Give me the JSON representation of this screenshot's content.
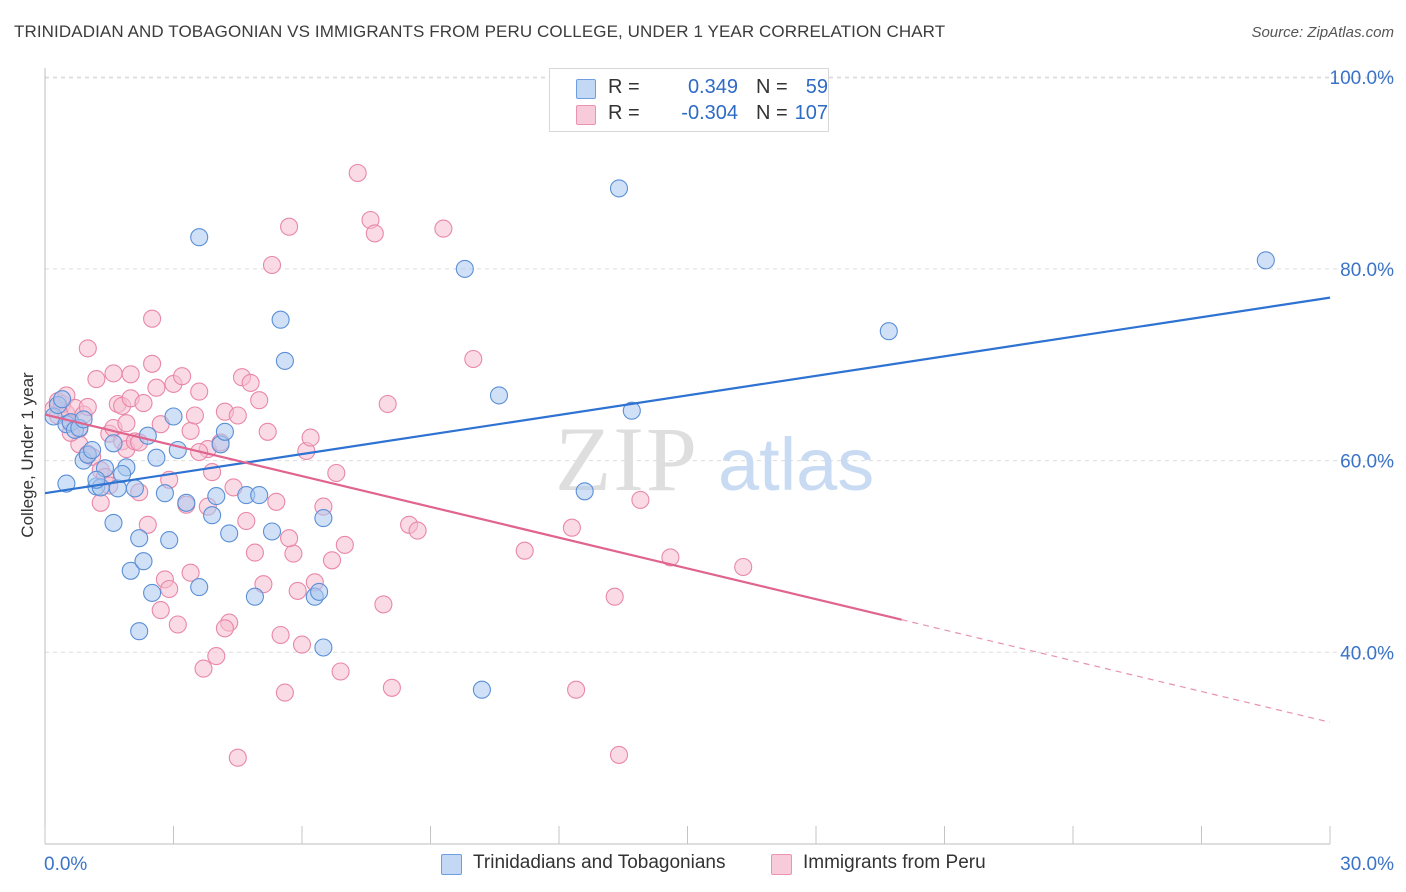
{
  "header": {
    "title": "TRINIDADIAN AND TOBAGONIAN VS IMMIGRANTS FROM PERU COLLEGE, UNDER 1 YEAR CORRELATION CHART",
    "source": "Source: ZipAtlas.com"
  },
  "watermark": {
    "zip": "ZIP",
    "atlas": "atlas"
  },
  "legend": {
    "r_label": "R =",
    "n_label": "N =",
    "rows": [
      {
        "r": "0.349",
        "n": "59"
      },
      {
        "r": "-0.304",
        "n": "107"
      }
    ]
  },
  "colors": {
    "blue_fill": "#a9c8f0",
    "blue_stroke": "#5b8fd6",
    "blue_line": "#2e72d2",
    "pink_fill": "#f6bdd0",
    "pink_stroke": "#e987a8",
    "pink_line": "#e0648e",
    "axis_label": "#3a73c8",
    "grid": "#dcdcdc"
  },
  "chart_data": {
    "type": "scatter",
    "title": "TRINIDADIAN AND TOBAGONIAN VS IMMIGRANTS FROM PERU COLLEGE, UNDER 1 YEAR CORRELATION CHART",
    "xlabel": "",
    "ylabel": "College, Under 1 year",
    "xlim": [
      0,
      30
    ],
    "ylim": [
      20,
      102
    ],
    "x_tick_labels": [
      {
        "value": 0,
        "label": "0.0%"
      },
      {
        "value": 30,
        "label": "30.0%"
      }
    ],
    "y_tick_labels": [
      {
        "value": 100,
        "label": "100.0%"
      },
      {
        "value": 80,
        "label": "80.0%"
      },
      {
        "value": 60,
        "label": "60.0%"
      },
      {
        "value": 40,
        "label": "40.0%"
      }
    ],
    "y_gridlines": [
      100,
      80,
      60,
      40
    ],
    "x_minor_ticks": [
      0,
      3,
      6,
      9,
      12,
      15,
      18,
      21,
      24,
      27,
      30
    ],
    "legend_position": "bottom",
    "series": [
      {
        "name": "Trinidadians and Tobagonians",
        "color": "blue",
        "trend": {
          "x": [
            0,
            30
          ],
          "y": [
            56.6,
            77.0
          ]
        },
        "points": [
          [
            0.2,
            64.6
          ],
          [
            0.3,
            65.8
          ],
          [
            0.4,
            66.4
          ],
          [
            0.5,
            63.8
          ],
          [
            0.6,
            64.0
          ],
          [
            0.7,
            63.2
          ],
          [
            0.5,
            57.6
          ],
          [
            0.8,
            63.4
          ],
          [
            0.9,
            60.0
          ],
          [
            1.0,
            60.6
          ],
          [
            1.1,
            61.1
          ],
          [
            1.2,
            57.3
          ],
          [
            1.3,
            57.2
          ],
          [
            1.4,
            59.2
          ],
          [
            1.6,
            61.8
          ],
          [
            1.7,
            57.1
          ],
          [
            1.9,
            59.3
          ],
          [
            2.0,
            48.5
          ],
          [
            2.1,
            57.1
          ],
          [
            2.2,
            51.9
          ],
          [
            2.4,
            62.6
          ],
          [
            2.5,
            46.2
          ],
          [
            2.6,
            60.3
          ],
          [
            2.8,
            56.6
          ],
          [
            2.9,
            51.7
          ],
          [
            3.0,
            64.6
          ],
          [
            3.1,
            61.1
          ],
          [
            3.3,
            55.6
          ],
          [
            3.6,
            83.3
          ],
          [
            3.6,
            46.8
          ],
          [
            3.9,
            54.3
          ],
          [
            4.0,
            56.3
          ],
          [
            4.1,
            61.7
          ],
          [
            4.2,
            63.0
          ],
          [
            4.3,
            52.4
          ],
          [
            4.7,
            56.4
          ],
          [
            4.9,
            45.8
          ],
          [
            5.0,
            56.4
          ],
          [
            5.3,
            52.6
          ],
          [
            5.5,
            74.7
          ],
          [
            5.6,
            70.4
          ],
          [
            6.3,
            45.8
          ],
          [
            6.4,
            46.3
          ],
          [
            6.5,
            54.0
          ],
          [
            6.5,
            40.5
          ],
          [
            2.3,
            49.5
          ],
          [
            1.6,
            53.5
          ],
          [
            1.2,
            58.0
          ],
          [
            2.2,
            42.2
          ],
          [
            9.8,
            80.0
          ],
          [
            10.2,
            36.1
          ],
          [
            10.6,
            66.8
          ],
          [
            12.6,
            56.8
          ],
          [
            13.4,
            88.4
          ],
          [
            13.7,
            65.2
          ],
          [
            19.7,
            73.5
          ],
          [
            28.5,
            80.9
          ],
          [
            1.8,
            58.6
          ],
          [
            0.9,
            64.3
          ]
        ]
      },
      {
        "name": "Immigrants from Peru",
        "color": "pink",
        "trend": {
          "x": [
            0,
            20
          ],
          "y": [
            64.8,
            43.4
          ]
        },
        "trend_dashed": {
          "x": [
            20,
            30
          ],
          "y": [
            43.4,
            32.7
          ]
        },
        "points": [
          [
            0.2,
            65.4
          ],
          [
            0.3,
            64.7
          ],
          [
            0.3,
            66.2
          ],
          [
            0.4,
            65.9
          ],
          [
            0.5,
            64.9
          ],
          [
            0.5,
            66.8
          ],
          [
            0.6,
            63.9
          ],
          [
            0.7,
            65.5
          ],
          [
            0.8,
            63.3
          ],
          [
            0.8,
            61.7
          ],
          [
            0.9,
            64.8
          ],
          [
            1.0,
            65.6
          ],
          [
            1.0,
            71.7
          ],
          [
            1.1,
            60.4
          ],
          [
            1.2,
            68.5
          ],
          [
            1.3,
            59.0
          ],
          [
            1.4,
            58.3
          ],
          [
            1.5,
            62.8
          ],
          [
            1.6,
            63.4
          ],
          [
            1.6,
            69.1
          ],
          [
            1.7,
            65.9
          ],
          [
            1.8,
            62.0
          ],
          [
            1.8,
            65.7
          ],
          [
            1.9,
            63.9
          ],
          [
            1.9,
            61.2
          ],
          [
            2.0,
            66.5
          ],
          [
            2.1,
            62.0
          ],
          [
            2.2,
            61.9
          ],
          [
            2.3,
            66.0
          ],
          [
            2.4,
            53.3
          ],
          [
            2.5,
            74.8
          ],
          [
            2.5,
            70.1
          ],
          [
            2.6,
            67.6
          ],
          [
            2.7,
            63.8
          ],
          [
            2.8,
            47.6
          ],
          [
            2.9,
            46.6
          ],
          [
            3.0,
            68.0
          ],
          [
            3.1,
            42.9
          ],
          [
            3.2,
            68.8
          ],
          [
            3.3,
            55.4
          ],
          [
            3.4,
            63.1
          ],
          [
            3.5,
            64.7
          ],
          [
            3.6,
            67.2
          ],
          [
            3.7,
            38.3
          ],
          [
            3.8,
            61.2
          ],
          [
            3.9,
            58.8
          ],
          [
            4.0,
            39.6
          ],
          [
            4.1,
            61.9
          ],
          [
            4.2,
            65.1
          ],
          [
            4.3,
            43.1
          ],
          [
            4.4,
            57.2
          ],
          [
            4.5,
            64.7
          ],
          [
            4.6,
            68.7
          ],
          [
            4.7,
            53.7
          ],
          [
            4.8,
            68.1
          ],
          [
            4.9,
            50.4
          ],
          [
            5.0,
            66.3
          ],
          [
            5.1,
            47.1
          ],
          [
            5.2,
            63.0
          ],
          [
            5.3,
            80.4
          ],
          [
            5.4,
            55.7
          ],
          [
            5.5,
            41.8
          ],
          [
            5.6,
            35.8
          ],
          [
            5.7,
            84.4
          ],
          [
            5.8,
            50.3
          ],
          [
            5.9,
            46.4
          ],
          [
            6.0,
            40.8
          ],
          [
            6.1,
            61.0
          ],
          [
            6.2,
            62.4
          ],
          [
            6.3,
            47.3
          ],
          [
            6.5,
            55.2
          ],
          [
            6.7,
            49.6
          ],
          [
            6.9,
            38.0
          ],
          [
            7.0,
            51.2
          ],
          [
            7.3,
            90.0
          ],
          [
            7.6,
            85.1
          ],
          [
            7.7,
            83.7
          ],
          [
            7.9,
            45.0
          ],
          [
            8.0,
            65.9
          ],
          [
            8.1,
            36.3
          ],
          [
            8.5,
            53.3
          ],
          [
            8.7,
            52.7
          ],
          [
            9.3,
            84.2
          ],
          [
            10.0,
            70.6
          ],
          [
            11.2,
            50.6
          ],
          [
            12.3,
            53.0
          ],
          [
            12.4,
            36.1
          ],
          [
            13.3,
            45.8
          ],
          [
            13.4,
            29.3
          ],
          [
            13.9,
            55.9
          ],
          [
            14.6,
            49.9
          ],
          [
            16.3,
            48.9
          ],
          [
            2.9,
            58.0
          ],
          [
            3.8,
            55.2
          ],
          [
            4.5,
            29.0
          ],
          [
            2.0,
            69.0
          ],
          [
            1.5,
            57.4
          ],
          [
            1.0,
            60.7
          ],
          [
            0.6,
            62.9
          ],
          [
            3.4,
            48.3
          ],
          [
            2.7,
            44.4
          ],
          [
            2.2,
            56.7
          ],
          [
            3.6,
            60.9
          ],
          [
            6.8,
            58.7
          ],
          [
            5.7,
            51.9
          ],
          [
            4.2,
            42.5
          ],
          [
            1.3,
            55.6
          ]
        ]
      }
    ]
  }
}
